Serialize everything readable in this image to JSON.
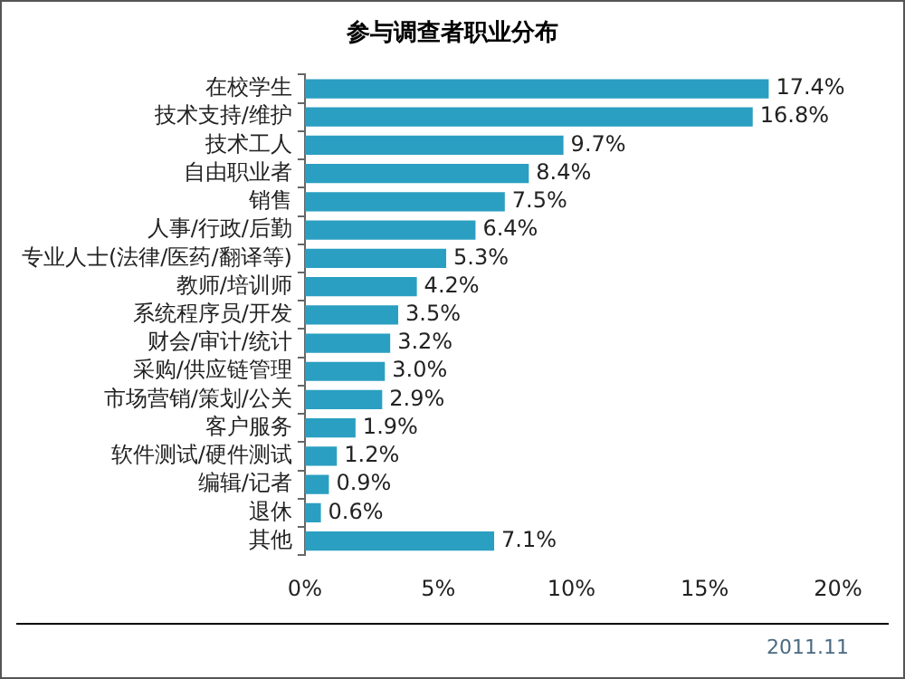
{
  "chart_data": {
    "type": "bar",
    "orientation": "horizontal",
    "title": "参与调查者职业分布",
    "categories": [
      "在校学生",
      "技术支持/维护",
      "技术工人",
      "自由职业者",
      "销售",
      "人事/行政/后勤",
      "专业人士(法律/医药/翻译等)",
      "教师/培训师",
      "系统程序员/开发",
      "财会/审计/统计",
      "采购/供应链管理",
      "市场营销/策划/公关",
      "客户服务",
      "软件测试/硬件测试",
      "编辑/记者",
      "退休",
      "其他"
    ],
    "values": [
      17.4,
      16.8,
      9.7,
      8.4,
      7.5,
      6.4,
      5.3,
      4.2,
      3.5,
      3.2,
      3.0,
      2.9,
      1.9,
      1.2,
      0.9,
      0.6,
      7.1
    ],
    "value_labels": [
      "17.4%",
      "16.8%",
      "9.7%",
      "8.4%",
      "7.5%",
      "6.4%",
      "5.3%",
      "4.2%",
      "3.5%",
      "3.2%",
      "3.0%",
      "2.9%",
      "1.9%",
      "1.2%",
      "0.9%",
      "0.6%",
      "7.1%"
    ],
    "color": "#2a9fc1",
    "xlim": [
      0,
      20
    ],
    "xticks": [
      {
        "value": 0,
        "label": "0%"
      },
      {
        "value": 5,
        "label": "5%"
      },
      {
        "value": 10,
        "label": "10%"
      },
      {
        "value": 15,
        "label": "15%"
      },
      {
        "value": 20,
        "label": "20%"
      }
    ],
    "grid": false,
    "legend": false,
    "annotations": [
      "2011.11"
    ]
  }
}
